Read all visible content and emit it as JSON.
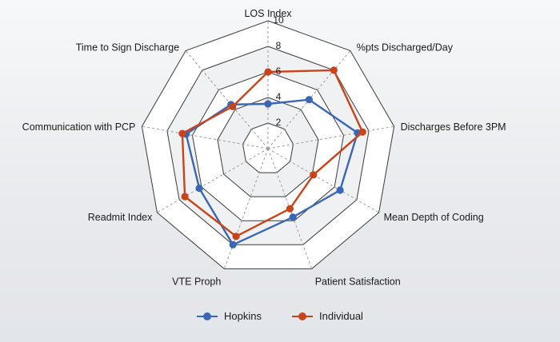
{
  "chart_data": {
    "type": "radar",
    "axes": [
      "LOS Index",
      "%pts Discharged/Day",
      "Discharges Before 3PM",
      "Mean Depth of Coding",
      "Patient Satisfaction",
      "VTE Proph",
      "Readmit Index",
      "Communication with PCP",
      "Time to Sign Discharge"
    ],
    "ticks": [
      "2",
      "4",
      "6",
      "8",
      "10"
    ],
    "range": [
      0,
      10
    ],
    "series": [
      {
        "name": "Hopkins",
        "color": "#3a66b5",
        "values": [
          3.5,
          5.0,
          7.1,
          6.5,
          5.7,
          8.0,
          6.2,
          6.5,
          4.5
        ]
      },
      {
        "name": "Individual",
        "color": "#c8441a",
        "values": [
          6.0,
          8.0,
          7.5,
          4.1,
          5.0,
          7.3,
          7.5,
          6.8,
          4.3
        ]
      }
    ],
    "legend_position": "bottom",
    "grid": true
  }
}
